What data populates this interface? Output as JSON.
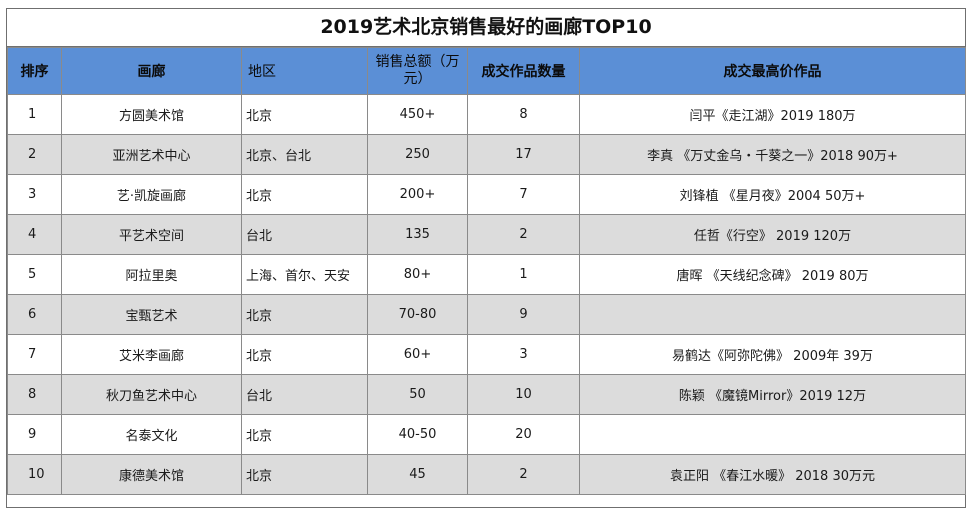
{
  "title": "2019艺术北京销售最好的画廊TOP10",
  "columns": {
    "rank": "排序",
    "gallery": "画廊",
    "region": "地区",
    "sales": "销售总额（万元）",
    "count": "成交作品数量",
    "work": "成交最高价作品"
  },
  "rows": [
    {
      "rank": "1",
      "gallery": "方圆美术馆",
      "region": "北京",
      "sales": "450+",
      "count": "8",
      "work": "闫平《走江湖》2019 180万"
    },
    {
      "rank": "2",
      "gallery": "亚洲艺术中心",
      "region": "北京、台北",
      "sales": "250",
      "count": "17",
      "work": "李真 《万丈金乌・千葵之一》2018 90万+"
    },
    {
      "rank": "3",
      "gallery": "艺·凯旋画廊",
      "region": "北京",
      "sales": "200+",
      "count": "7",
      "work": "刘锋植 《星月夜》2004  50万+"
    },
    {
      "rank": "4",
      "gallery": "平艺术空间",
      "region": "台北",
      "sales": "135",
      "count": "2",
      "work": "任哲《行空》 2019 120万"
    },
    {
      "rank": "5",
      "gallery": "阿拉里奥",
      "region": "上海、首尔、天安",
      "sales": "80+",
      "count": "1",
      "work": "唐晖 《天线纪念碑》 2019 80万"
    },
    {
      "rank": "6",
      "gallery": "宝甄艺术",
      "region": "北京",
      "sales": "70-80",
      "count": "9",
      "work": ""
    },
    {
      "rank": "7",
      "gallery": "艾米李画廊",
      "region": "北京",
      "sales": "60+",
      "count": "3",
      "work": "易鹤达《阿弥陀佛》 2009年 39万"
    },
    {
      "rank": "8",
      "gallery": "秋刀鱼艺术中心",
      "region": "台北",
      "sales": "50",
      "count": "10",
      "work": "陈颖 《魔镜Mirror》2019 12万"
    },
    {
      "rank": "9",
      "gallery": "名泰文化",
      "region": "北京",
      "sales": "40-50",
      "count": "20",
      "work": ""
    },
    {
      "rank": "10",
      "gallery": "康德美术馆",
      "region": "北京",
      "sales": "45",
      "count": "2",
      "work": "袁正阳 《春江水暖》 2018 30万元"
    }
  ],
  "colors": {
    "header_bg": "#5b8fd6",
    "stripe_bg": "#dcdcdc",
    "border": "#8a8a8a"
  }
}
